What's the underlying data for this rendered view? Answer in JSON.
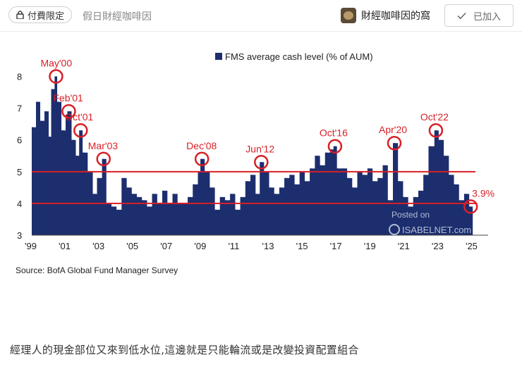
{
  "header": {
    "badge_label": "付費限定",
    "publication": "假日財經咖啡因",
    "author": "財經咖啡因的窩",
    "follow_label": "已加入"
  },
  "chart_data": {
    "type": "bar",
    "legend": "FMS average cash level (% of AUM)",
    "source": "Source: BofA Global Fund Manager Survey",
    "watermark_top": "Posted on",
    "watermark_bottom": "ISABELNET.com",
    "ylim": [
      3,
      8.5
    ],
    "yticks": [
      "3",
      "4",
      "5",
      "6",
      "7",
      "8"
    ],
    "xlim": [
      1999,
      2025.5
    ],
    "xticks": [
      {
        "x": 1999,
        "label": "'99"
      },
      {
        "x": 2001,
        "label": "'01"
      },
      {
        "x": 2003,
        "label": "'03"
      },
      {
        "x": 2005,
        "label": "'05"
      },
      {
        "x": 2007,
        "label": "'07"
      },
      {
        "x": 2009,
        "label": "'09"
      },
      {
        "x": 2011,
        "label": "'11"
      },
      {
        "x": 2013,
        "label": "'13"
      },
      {
        "x": 2015,
        "label": "'15"
      },
      {
        "x": 2017,
        "label": "'17"
      },
      {
        "x": 2019,
        "label": "'19"
      },
      {
        "x": 2021,
        "label": "'21"
      },
      {
        "x": 2023,
        "label": "'23"
      },
      {
        "x": 2025,
        "label": "'25"
      }
    ],
    "reference_lines": [
      5.0,
      4.0
    ],
    "bar_color": "#1c2e6e",
    "line_color": "#d81f26",
    "series": [
      [
        1999.0,
        6.4
      ],
      [
        1999.25,
        7.2
      ],
      [
        1999.5,
        6.6
      ],
      [
        1999.75,
        6.9
      ],
      [
        2000.0,
        6.1
      ],
      [
        2000.15,
        7.6
      ],
      [
        2000.35,
        8.0
      ],
      [
        2000.5,
        7.2
      ],
      [
        2000.75,
        6.3
      ],
      [
        2001.0,
        6.8
      ],
      [
        2001.1,
        6.9
      ],
      [
        2001.35,
        6.0
      ],
      [
        2001.6,
        5.5
      ],
      [
        2001.8,
        6.3
      ],
      [
        2002.0,
        5.6
      ],
      [
        2002.3,
        5.0
      ],
      [
        2002.6,
        4.3
      ],
      [
        2002.85,
        4.8
      ],
      [
        2003.15,
        5.4
      ],
      [
        2003.4,
        4.0
      ],
      [
        2003.7,
        3.9
      ],
      [
        2004.0,
        3.8
      ],
      [
        2004.3,
        4.8
      ],
      [
        2004.6,
        4.5
      ],
      [
        2004.9,
        4.3
      ],
      [
        2005.2,
        4.2
      ],
      [
        2005.5,
        4.1
      ],
      [
        2005.8,
        3.9
      ],
      [
        2006.1,
        4.3
      ],
      [
        2006.4,
        4.0
      ],
      [
        2006.7,
        4.4
      ],
      [
        2007.0,
        4.0
      ],
      [
        2007.3,
        4.3
      ],
      [
        2007.6,
        4.0
      ],
      [
        2007.9,
        4.0
      ],
      [
        2008.2,
        4.2
      ],
      [
        2008.5,
        4.6
      ],
      [
        2008.8,
        5.0
      ],
      [
        2008.95,
        5.4
      ],
      [
        2009.2,
        5.0
      ],
      [
        2009.5,
        4.5
      ],
      [
        2009.8,
        3.8
      ],
      [
        2010.1,
        4.2
      ],
      [
        2010.4,
        4.1
      ],
      [
        2010.7,
        4.3
      ],
      [
        2011.0,
        3.8
      ],
      [
        2011.3,
        4.2
      ],
      [
        2011.6,
        4.7
      ],
      [
        2011.9,
        4.9
      ],
      [
        2012.2,
        4.3
      ],
      [
        2012.45,
        5.3
      ],
      [
        2012.7,
        5.0
      ],
      [
        2013.0,
        4.5
      ],
      [
        2013.3,
        4.3
      ],
      [
        2013.6,
        4.5
      ],
      [
        2013.9,
        4.8
      ],
      [
        2014.2,
        4.9
      ],
      [
        2014.5,
        4.6
      ],
      [
        2014.8,
        5.0
      ],
      [
        2015.1,
        4.7
      ],
      [
        2015.4,
        5.1
      ],
      [
        2015.7,
        5.5
      ],
      [
        2016.0,
        5.2
      ],
      [
        2016.3,
        5.6
      ],
      [
        2016.6,
        5.7
      ],
      [
        2016.8,
        5.8
      ],
      [
        2017.0,
        5.1
      ],
      [
        2017.3,
        5.1
      ],
      [
        2017.6,
        4.8
      ],
      [
        2017.9,
        4.5
      ],
      [
        2018.2,
        5.0
      ],
      [
        2018.5,
        4.9
      ],
      [
        2018.8,
        5.1
      ],
      [
        2019.1,
        4.7
      ],
      [
        2019.4,
        4.8
      ],
      [
        2019.7,
        5.2
      ],
      [
        2020.0,
        4.1
      ],
      [
        2020.3,
        5.9
      ],
      [
        2020.6,
        4.7
      ],
      [
        2020.9,
        4.2
      ],
      [
        2021.2,
        3.9
      ],
      [
        2021.5,
        4.2
      ],
      [
        2021.8,
        4.4
      ],
      [
        2022.1,
        4.9
      ],
      [
        2022.4,
        5.8
      ],
      [
        2022.75,
        6.3
      ],
      [
        2023.0,
        6.0
      ],
      [
        2023.3,
        5.5
      ],
      [
        2023.6,
        4.9
      ],
      [
        2023.9,
        4.6
      ],
      [
        2024.2,
        4.1
      ],
      [
        2024.5,
        4.3
      ],
      [
        2024.8,
        3.9
      ]
    ],
    "annotations": [
      {
        "label": "May'00",
        "x": 2000.35,
        "y": 8.0
      },
      {
        "label": "Feb'01",
        "x": 2001.1,
        "y": 6.9
      },
      {
        "label": "Oct'01",
        "x": 2001.8,
        "y": 6.3
      },
      {
        "label": "Mar'03",
        "x": 2003.15,
        "y": 5.4
      },
      {
        "label": "Dec'08",
        "x": 2008.95,
        "y": 5.4
      },
      {
        "label": "Jun'12",
        "x": 2012.45,
        "y": 5.3
      },
      {
        "label": "Oct'16",
        "x": 2016.8,
        "y": 5.8
      },
      {
        "label": "Apr'20",
        "x": 2020.3,
        "y": 5.9
      },
      {
        "label": "Oct'22",
        "x": 2022.75,
        "y": 6.3
      },
      {
        "label": "3.9%",
        "x": 2024.8,
        "y": 3.9
      }
    ]
  },
  "caption": "經理人的現金部位又來到低水位,這邊就是只能輪流或是改變投資配置組合"
}
